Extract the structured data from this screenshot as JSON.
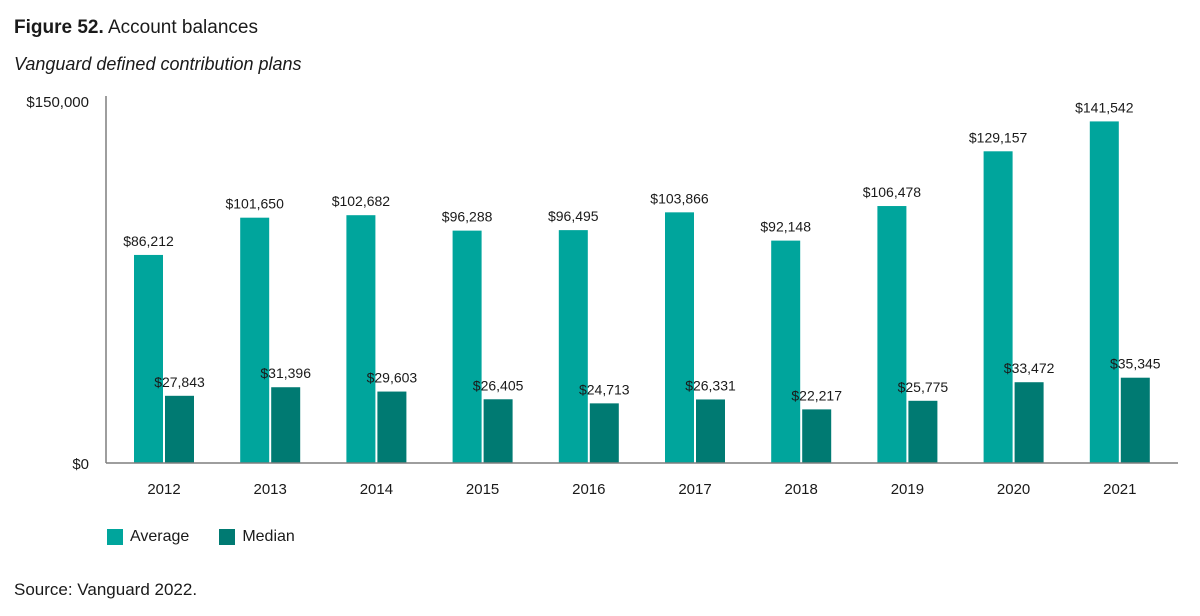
{
  "figure": {
    "number_label": "Figure 52.",
    "title": "Account balances",
    "subtitle": "Vanguard defined contribution plans"
  },
  "source": "Source: Vanguard 2022.",
  "colors": {
    "average": "#00A59C",
    "median": "#007A72",
    "axis": "#7f7f7f",
    "text": "#1a1a1a"
  },
  "chart_data": {
    "type": "bar",
    "title": "Account balances",
    "subtitle": "Vanguard defined contribution plans",
    "categories": [
      "2012",
      "2013",
      "2014",
      "2015",
      "2016",
      "2017",
      "2018",
      "2019",
      "2020",
      "2021"
    ],
    "series": [
      {
        "name": "Average",
        "values": [
          86212,
          101650,
          102682,
          96288,
          96495,
          103866,
          92148,
          106478,
          129157,
          141542
        ],
        "labels": [
          "$86,212",
          "$101,650",
          "$102,682",
          "$96,288",
          "$96,495",
          "$103,866",
          "$92,148",
          "$106,478",
          "$129,157",
          "$141,542"
        ]
      },
      {
        "name": "Median",
        "values": [
          27843,
          31396,
          29603,
          26405,
          24713,
          26331,
          22217,
          25775,
          33472,
          35345
        ],
        "labels": [
          "$27,843",
          "$31,396",
          "$29,603",
          "$26,405",
          "$24,713",
          "$26,331",
          "$22,217",
          "$25,775",
          "$33,472",
          "$35,345"
        ]
      }
    ],
    "ylim": [
      0,
      150000
    ],
    "yticks": [
      0,
      150000
    ],
    "ytick_labels": [
      "$0",
      "$150,000"
    ],
    "xlabel": "",
    "ylabel": "",
    "grid": false,
    "legend_position": "bottom-left"
  }
}
